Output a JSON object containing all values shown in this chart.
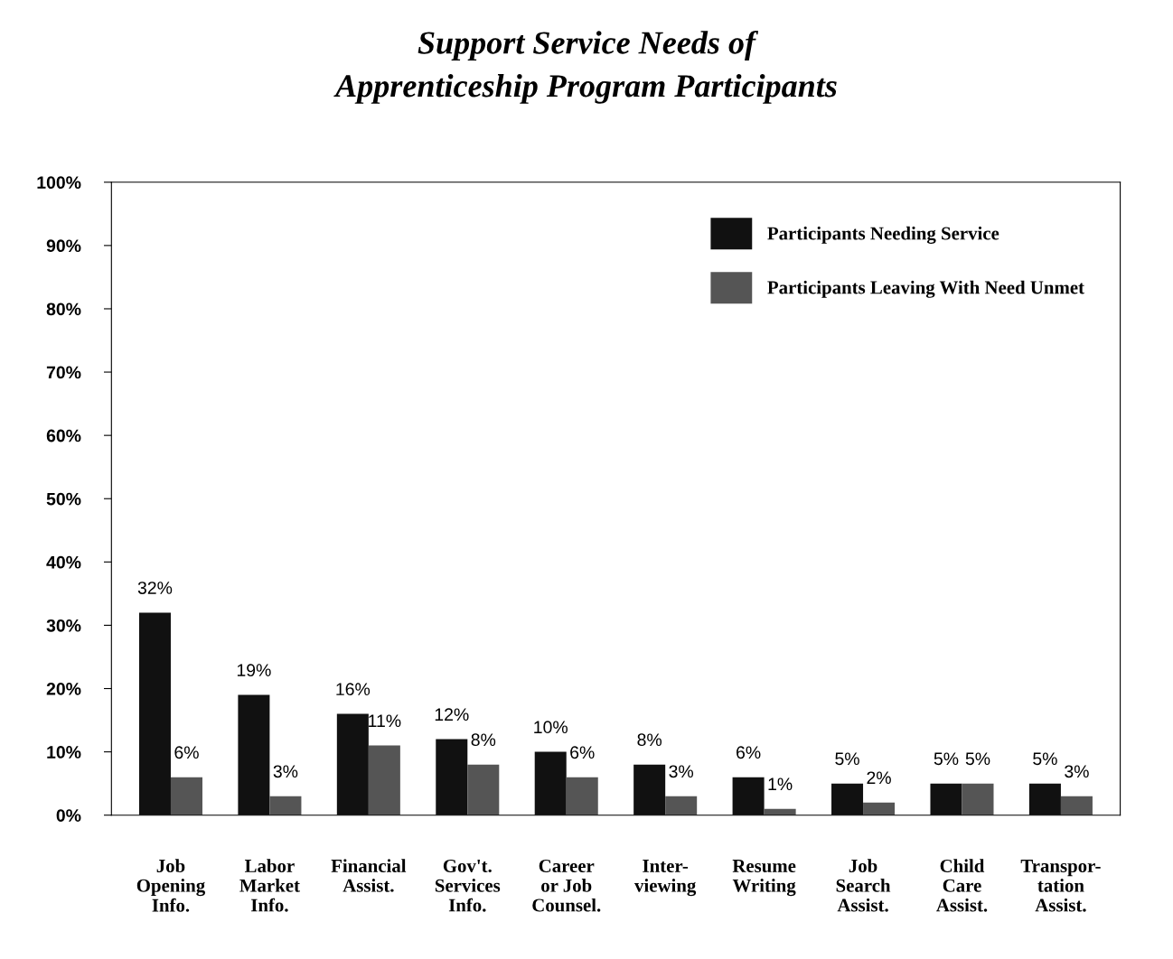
{
  "chart_data": {
    "type": "bar",
    "title": "Support Service Needs of\nApprenticeship Program Participants",
    "categories": [
      "Job\nOpening\nInfo.",
      "Labor\nMarket\nInfo.",
      "Financial\nAssist.",
      "Gov't.\nServices\nInfo.",
      "Career\nor Job\nCounsel.",
      "Inter-\nviewing",
      "Resume\nWriting",
      "Job\nSearch\nAssist.",
      "Child\nCare\nAssist.",
      "Transpor-\ntation\nAssist."
    ],
    "series": [
      {
        "name": "Participants Needing Service",
        "color": "#111111",
        "values": [
          32,
          19,
          16,
          12,
          10,
          8,
          6,
          5,
          5,
          5
        ],
        "value_labels": [
          "32%",
          "19%",
          "16%",
          "12%",
          "10%",
          "8%",
          "6%",
          "5%",
          "5%",
          "5%"
        ]
      },
      {
        "name": "Participants Leaving With Need Unmet",
        "color": "#555555",
        "values": [
          6,
          3,
          11,
          8,
          6,
          3,
          1,
          2,
          5,
          3
        ],
        "value_labels": [
          "6%",
          "3%",
          "11%",
          "8%",
          "6%",
          "3%",
          "1%",
          "2%",
          "5%",
          "3%"
        ]
      }
    ],
    "ylim": [
      0,
      100
    ],
    "yticks": [
      {
        "value": 0,
        "label": "0%"
      },
      {
        "value": 10,
        "label": "10%"
      },
      {
        "value": 20,
        "label": "20%"
      },
      {
        "value": 30,
        "label": "30%"
      },
      {
        "value": 40,
        "label": "40%"
      },
      {
        "value": 50,
        "label": "50%"
      },
      {
        "value": 60,
        "label": "60%"
      },
      {
        "value": 70,
        "label": "70%"
      },
      {
        "value": 80,
        "label": "80%"
      },
      {
        "value": 90,
        "label": "90%"
      },
      {
        "value": 100,
        "label": "100%"
      }
    ],
    "legend": "top right",
    "grid": false
  }
}
